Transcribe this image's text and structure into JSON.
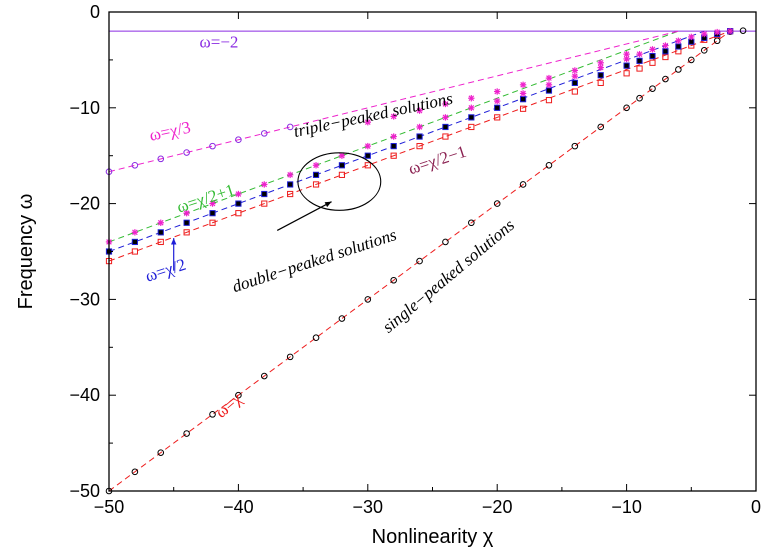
{
  "chart_data": {
    "type": "scatter",
    "xlabel": "Nonlinearity χ",
    "ylabel": "Frequency ω",
    "xlim": [
      -50,
      0
    ],
    "ylim": [
      -50,
      0
    ],
    "xticks": [
      -50,
      -40,
      -30,
      -20,
      -10,
      0
    ],
    "yticks": [
      -50,
      -40,
      -30,
      -20,
      -10,
      0
    ],
    "xtick_labels": [
      "−50",
      "−40",
      "−30",
      "−20",
      "−10",
      "0"
    ],
    "ytick_labels": [
      "−50",
      "−40",
      "−30",
      "−20",
      "−10",
      "0"
    ],
    "grid": false,
    "colors": {
      "red": "#ee1c1c",
      "blue": "#1f1fd8",
      "green": "#33bb33",
      "magenta": "#ee22cc",
      "purple": "#8a2be2",
      "maroon": "#8b2252",
      "black": "#000000"
    },
    "lines": [
      {
        "label": "ω=−2",
        "color": "#8a2be2",
        "dash": false,
        "x": [
          -50,
          0
        ],
        "y": [
          -2,
          -2
        ]
      },
      {
        "label": "ω=χ",
        "color": "#ee1c1c",
        "dash": true,
        "x": [
          -50,
          -2
        ],
        "y": [
          -50,
          -2
        ]
      },
      {
        "label": "ω=χ/2",
        "color": "#1f1fd8",
        "dash": true,
        "x": [
          -50,
          -4
        ],
        "y": [
          -25,
          -2
        ]
      },
      {
        "label": "ω=χ/2+1",
        "color": "#33bb33",
        "dash": true,
        "x": [
          -50,
          -6
        ],
        "y": [
          -24,
          -2
        ]
      },
      {
        "label": "ω=χ/2−1",
        "color": "#ee1c1c",
        "dash": true,
        "x": [
          -50,
          -2
        ],
        "y": [
          -26,
          -2
        ]
      },
      {
        "label": "ω=χ/3",
        "color": "#ee22cc",
        "dash": true,
        "x": [
          -50,
          -6
        ],
        "y": [
          -16.67,
          -2
        ]
      }
    ],
    "series": [
      {
        "marker": "circle",
        "color": "#000000",
        "x": [
          -50,
          -48,
          -46,
          -44,
          -42,
          -40,
          -38,
          -36,
          -34,
          -32,
          -30,
          -28,
          -26,
          -24,
          -22,
          -20,
          -18,
          -16,
          -14,
          -12,
          -10,
          -9,
          -8,
          -7,
          -6,
          -5,
          -4,
          -3,
          -2,
          -1
        ],
        "y": [
          -50,
          -48,
          -46,
          -44,
          -42,
          -40,
          -38,
          -36,
          -34,
          -32,
          -30,
          -28,
          -26,
          -24,
          -22,
          -20,
          -18,
          -16,
          -14,
          -12,
          -10,
          -9,
          -8,
          -7,
          -6,
          -5,
          -4,
          -3,
          -2.05,
          -1.95
        ]
      },
      {
        "marker": "square",
        "color": "#ee1c1c",
        "x": [
          -50,
          -48,
          -46,
          -44,
          -42,
          -40,
          -38,
          -36,
          -34,
          -32,
          -30,
          -28,
          -26,
          -24,
          -22,
          -20,
          -18,
          -16,
          -14,
          -12,
          -10,
          -9,
          -8,
          -7,
          -6,
          -5,
          -4,
          -3,
          -2
        ],
        "y": [
          -26,
          -25,
          -24,
          -23,
          -22,
          -21,
          -20,
          -19,
          -18,
          -17,
          -16,
          -15,
          -14,
          -13,
          -12,
          -11,
          -10.1,
          -9.2,
          -8.3,
          -7.4,
          -6.4,
          -5.9,
          -5.3,
          -4.7,
          -4.1,
          -3.5,
          -2.9,
          -2.4,
          -2.0
        ]
      },
      {
        "marker": "square-filled",
        "color": "#1f1fd8",
        "x": [
          -50,
          -48,
          -46,
          -44,
          -42,
          -40,
          -38,
          -36,
          -34,
          -32,
          -30,
          -28,
          -26,
          -24,
          -22,
          -20,
          -18,
          -16,
          -14,
          -12,
          -10,
          -9,
          -8,
          -7,
          -6,
          -5,
          -4,
          -3,
          -2
        ],
        "y": [
          -25,
          -24,
          -23,
          -22,
          -21,
          -20,
          -19,
          -18,
          -17,
          -16,
          -15,
          -14,
          -13,
          -12,
          -11,
          -10,
          -9.1,
          -8.2,
          -7.4,
          -6.6,
          -5.6,
          -5.1,
          -4.6,
          -4.1,
          -3.6,
          -3.1,
          -2.7,
          -2.3,
          -2.0
        ]
      },
      {
        "marker": "star",
        "color": "#ee22cc",
        "x": [
          -50,
          -48,
          -46,
          -44,
          -42,
          -40,
          -38,
          -36,
          -34,
          -32,
          -30,
          -28,
          -26,
          -24,
          -22,
          -20,
          -18,
          -16,
          -14,
          -12,
          -10,
          -9,
          -8,
          -7,
          -6,
          -5,
          -4,
          -3,
          -2
        ],
        "y": [
          -24,
          -23,
          -22,
          -21,
          -20,
          -19,
          -18,
          -17,
          -16,
          -15,
          -14,
          -13,
          -12,
          -11,
          -10,
          -9.3,
          -8.5,
          -7.6,
          -6.7,
          -5.8,
          -4.9,
          -4.4,
          -3.9,
          -3.5,
          -3.0,
          -2.6,
          -2.3,
          -2.1,
          -2.0
        ]
      },
      {
        "marker": "circle",
        "color": "#8a2be2",
        "x": [
          -50,
          -48,
          -46,
          -44,
          -42,
          -40,
          -38,
          -36
        ],
        "y": [
          -16.67,
          -16.0,
          -15.33,
          -14.67,
          -14.0,
          -13.33,
          -12.67,
          -12.0
        ]
      },
      {
        "marker": "star",
        "color": "#ee22cc",
        "x": [
          -30,
          -28,
          -26,
          -24,
          -22,
          -20,
          -18,
          -16,
          -14,
          -12,
          -10
        ],
        "y": [
          -11.5,
          -10.9,
          -10.3,
          -9.6,
          -9.0,
          -8.3,
          -7.6,
          -6.9,
          -6.1,
          -5.3,
          -4.4
        ]
      }
    ],
    "annotations": [
      {
        "text": "ω=−2",
        "color": "#8a2be2",
        "x": -41.5,
        "y": -3.7,
        "angle": 0,
        "italic": false
      },
      {
        "text": "triple−peaked solutions",
        "color": "#000000",
        "x": -29.5,
        "y": -11.3,
        "angle": -12,
        "italic": true
      },
      {
        "text": "ω=χ/3",
        "color": "#ee22cc",
        "x": -45.2,
        "y": -13.0,
        "angle": -12,
        "italic": false
      },
      {
        "text": "ω=χ/2+1",
        "color": "#33bb33",
        "x": -42.4,
        "y": -20.0,
        "angle": -18,
        "italic": false
      },
      {
        "text": "ω=χ/2−1",
        "color": "#8b2252",
        "x": -24.5,
        "y": -16.0,
        "angle": -18,
        "italic": false
      },
      {
        "text": "double−peaked solutions",
        "color": "#000000",
        "x": -34.0,
        "y": -26.5,
        "angle": -18,
        "italic": true
      },
      {
        "text": "ω=χ/2",
        "color": "#1f1fd8",
        "x": -45.5,
        "y": -27.5,
        "angle": -18,
        "italic": false
      },
      {
        "text": "single−peaked solutions",
        "color": "#000000",
        "x": -23.5,
        "y": -28.0,
        "angle": -40,
        "italic": true
      },
      {
        "text": "ω=χ",
        "color": "#ee1c1c",
        "x": -40.5,
        "y": -41.5,
        "angle": -40,
        "italic": false
      }
    ],
    "ellipse": {
      "cx": -32.2,
      "cy": -17.7,
      "rx": 3.2,
      "ry": 3.0
    },
    "arrows": [
      {
        "from": [
          -37.0,
          -22.8
        ],
        "to": [
          -32.8,
          -19.8
        ],
        "color": "#000000"
      },
      {
        "from": [
          -45.0,
          -27.0
        ],
        "to": [
          -45.0,
          -23.6
        ],
        "color": "#1f1fd8"
      }
    ]
  }
}
